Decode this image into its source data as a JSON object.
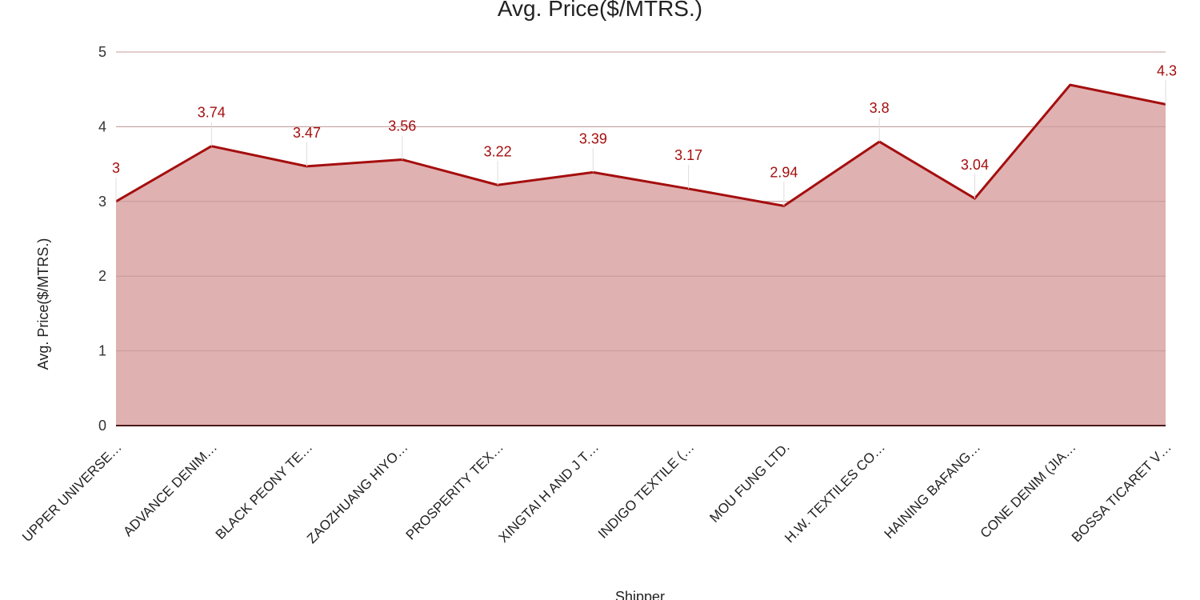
{
  "chart_data": {
    "type": "area",
    "title": "Avg. Price($/MTRS.)",
    "xlabel": "Shipper",
    "ylabel": "Avg. Price($/MTRS.)",
    "ylim": [
      0,
      5
    ],
    "yticks": [
      "0",
      "1",
      "2",
      "3",
      "4",
      "5"
    ],
    "grid": true,
    "legend": "none",
    "categories": [
      "UPPER UNIVERSE…",
      "ADVANCE DENIM…",
      "BLACK PEONY TE…",
      "ZAOZHUANG HIYO…",
      "PROSPERITY TEX…",
      "XINGTAI H AND J T…",
      "INDIGO TEXTILE (…",
      "MOU FUNG LTD.",
      "H.W. TEXTILES CO…",
      "HAINING BAFANG…",
      "CONE DENIM (JIA…",
      "BOSSA TICARET V…"
    ],
    "series": [
      {
        "values": [
          3.0,
          3.74,
          3.47,
          3.56,
          3.22,
          3.39,
          3.17,
          2.94,
          3.8,
          3.04,
          4.56,
          4.3
        ],
        "labels": [
          "3",
          "3.74",
          "3.47",
          "3.56",
          "3.22",
          "3.39",
          "3.17",
          "2.94",
          "3.8",
          "3.04",
          "",
          "4.3"
        ],
        "line_color": "#a50e0e",
        "fill_color": "#e0b1b1"
      }
    ]
  }
}
